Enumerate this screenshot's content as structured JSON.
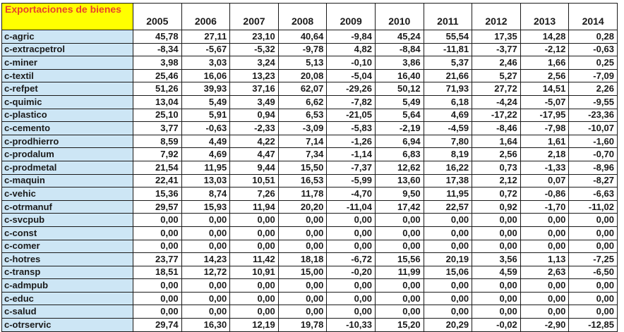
{
  "table": {
    "corner_label": "Exportaciones de bienes",
    "years": [
      "2005",
      "2006",
      "2007",
      "2008",
      "2009",
      "2010",
      "2011",
      "2012",
      "2013",
      "2014"
    ],
    "rows": [
      {
        "label": "c-agric",
        "values": [
          "45,78",
          "27,11",
          "23,10",
          "40,64",
          "-9,84",
          "45,24",
          "55,54",
          "17,35",
          "14,28",
          "0,28"
        ]
      },
      {
        "label": "c-extracpetrol",
        "values": [
          "-8,34",
          "-5,67",
          "-5,32",
          "-9,78",
          "4,82",
          "-8,84",
          "-11,81",
          "-3,77",
          "-2,12",
          "-0,63"
        ]
      },
      {
        "label": "c-miner",
        "values": [
          "3,98",
          "3,03",
          "3,24",
          "5,13",
          "-0,10",
          "3,86",
          "5,37",
          "2,46",
          "1,66",
          "0,25"
        ]
      },
      {
        "label": "c-textil",
        "values": [
          "25,46",
          "16,06",
          "13,23",
          "20,08",
          "-5,04",
          "16,40",
          "21,66",
          "5,27",
          "2,56",
          "-7,09"
        ]
      },
      {
        "label": "c-refpet",
        "values": [
          "51,26",
          "39,93",
          "37,16",
          "62,07",
          "-29,26",
          "50,12",
          "71,93",
          "27,72",
          "14,51",
          "2,26"
        ]
      },
      {
        "label": "c-quimic",
        "values": [
          "13,04",
          "5,49",
          "3,49",
          "6,62",
          "-7,82",
          "5,49",
          "6,18",
          "-4,24",
          "-5,07",
          "-9,55"
        ]
      },
      {
        "label": "c-plastico",
        "values": [
          "25,10",
          "5,91",
          "0,94",
          "6,53",
          "-21,05",
          "5,64",
          "4,69",
          "-17,22",
          "-17,95",
          "-23,36"
        ]
      },
      {
        "label": "c-cemento",
        "values": [
          "3,77",
          "-0,63",
          "-2,33",
          "-3,09",
          "-5,83",
          "-2,19",
          "-4,59",
          "-8,46",
          "-7,98",
          "-10,07"
        ]
      },
      {
        "label": "c-prodhierro",
        "values": [
          "8,59",
          "4,49",
          "4,22",
          "7,14",
          "-1,26",
          "6,94",
          "7,80",
          "1,64",
          "1,61",
          "-1,60"
        ]
      },
      {
        "label": "c-prodalum",
        "values": [
          "7,92",
          "4,69",
          "4,47",
          "7,34",
          "-1,14",
          "6,83",
          "8,19",
          "2,56",
          "2,18",
          "-0,70"
        ]
      },
      {
        "label": "c-prodmetal",
        "values": [
          "21,54",
          "11,95",
          "9,44",
          "15,50",
          "-7,37",
          "12,62",
          "16,22",
          "0,73",
          "-1,33",
          "-8,96"
        ]
      },
      {
        "label": "c-maquin",
        "values": [
          "22,41",
          "13,03",
          "10,51",
          "16,53",
          "-5,99",
          "13,60",
          "17,38",
          "2,12",
          "0,07",
          "-8,27"
        ]
      },
      {
        "label": "c-vehic",
        "values": [
          "15,36",
          "8,74",
          "7,26",
          "11,78",
          "-4,70",
          "9,50",
          "11,95",
          "0,72",
          "-0,86",
          "-6,63"
        ]
      },
      {
        "label": "c-otrmanuf",
        "values": [
          "29,57",
          "15,93",
          "11,94",
          "20,20",
          "-11,04",
          "17,42",
          "22,57",
          "0,92",
          "-1,70",
          "-11,02"
        ]
      },
      {
        "label": "c-svcpub",
        "values": [
          "0,00",
          "0,00",
          "0,00",
          "0,00",
          "0,00",
          "0,00",
          "0,00",
          "0,00",
          "0,00",
          "0,00"
        ]
      },
      {
        "label": "c-const",
        "values": [
          "0,00",
          "0,00",
          "0,00",
          "0,00",
          "0,00",
          "0,00",
          "0,00",
          "0,00",
          "0,00",
          "0,00"
        ]
      },
      {
        "label": "c-comer",
        "values": [
          "0,00",
          "0,00",
          "0,00",
          "0,00",
          "0,00",
          "0,00",
          "0,00",
          "0,00",
          "0,00",
          "0,00"
        ]
      },
      {
        "label": "c-hotres",
        "values": [
          "23,77",
          "14,23",
          "11,42",
          "18,18",
          "-6,72",
          "15,56",
          "20,19",
          "3,56",
          "1,13",
          "-7,25"
        ]
      },
      {
        "label": "c-transp",
        "values": [
          "18,51",
          "12,72",
          "10,91",
          "15,00",
          "-0,20",
          "11,99",
          "15,06",
          "4,59",
          "2,63",
          "-6,50"
        ]
      },
      {
        "label": "c-admpub",
        "values": [
          "0,00",
          "0,00",
          "0,00",
          "0,00",
          "0,00",
          "0,00",
          "0,00",
          "0,00",
          "0,00",
          "0,00"
        ]
      },
      {
        "label": "c-educ",
        "values": [
          "0,00",
          "0,00",
          "0,00",
          "0,00",
          "0,00",
          "0,00",
          "0,00",
          "0,00",
          "0,00",
          "0,00"
        ]
      },
      {
        "label": "c-salud",
        "values": [
          "0,00",
          "0,00",
          "0,00",
          "0,00",
          "0,00",
          "0,00",
          "0,00",
          "0,00",
          "0,00",
          "0,00"
        ]
      },
      {
        "label": "c-otrservic",
        "values": [
          "29,74",
          "16,30",
          "12,19",
          "19,78",
          "-10,33",
          "15,20",
          "20,29",
          "-0,02",
          "-2,90",
          "-12,85"
        ]
      }
    ]
  },
  "colors": {
    "corner_bg": "#ffff00",
    "corner_text": "#e8432a",
    "row_label_bg": "#cde6f5"
  }
}
